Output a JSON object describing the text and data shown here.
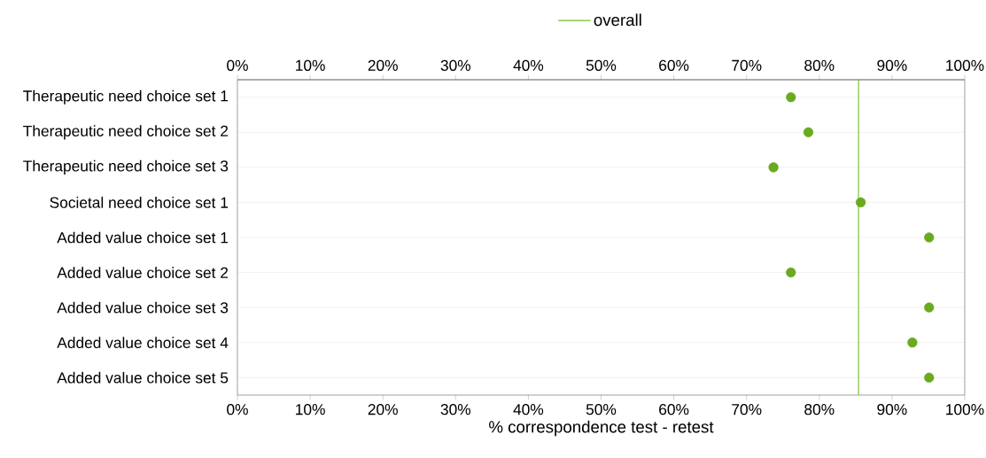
{
  "chart_data": {
    "type": "scatter",
    "orientation": "horizontal",
    "categories": [
      "Therapeutic need choice set 1",
      "Therapeutic need choice set 2",
      "Therapeutic need choice set 3",
      "Societal need choice set 1",
      "Added value choice set 1",
      "Added value choice set 2",
      "Added value choice set 3",
      "Added value choice set 4",
      "Added value choice set 5"
    ],
    "values": [
      76.1,
      78.5,
      73.7,
      85.7,
      95.1,
      76.1,
      95.1,
      92.8,
      95.1
    ],
    "color": "#6aaa1e",
    "marker": "circle",
    "xlabel": "% correspondence test - retest",
    "xlim": [
      0,
      100
    ],
    "xticks": [
      {
        "value": 0,
        "label": "0%"
      },
      {
        "value": 10,
        "label": "10%"
      },
      {
        "value": 20,
        "label": "20%"
      },
      {
        "value": 30,
        "label": "30%"
      },
      {
        "value": 40,
        "label": "40%"
      },
      {
        "value": 50,
        "label": "50%"
      },
      {
        "value": 60,
        "label": "60%"
      },
      {
        "value": 70,
        "label": "70%"
      },
      {
        "value": 80,
        "label": "80%"
      },
      {
        "value": 90,
        "label": "90%"
      },
      {
        "value": 100,
        "label": "100%"
      }
    ],
    "x2lim": [
      0,
      100
    ],
    "x2ticks": [
      {
        "value": 0,
        "label": "0%"
      },
      {
        "value": 10,
        "label": "10%"
      },
      {
        "value": 20,
        "label": "20%"
      },
      {
        "value": 30,
        "label": "30%"
      },
      {
        "value": 40,
        "label": "40%"
      },
      {
        "value": 50,
        "label": "50%"
      },
      {
        "value": 60,
        "label": "60%"
      },
      {
        "value": 70,
        "label": "70%"
      },
      {
        "value": 80,
        "label": "80%"
      },
      {
        "value": 90,
        "label": "90%"
      },
      {
        "value": 100,
        "label": "100%"
      }
    ],
    "ref_lines": [
      {
        "axis": "x",
        "value": 85.4,
        "label": "overall",
        "color": "#8cc84b"
      }
    ],
    "grid": "y",
    "legend": "top"
  }
}
